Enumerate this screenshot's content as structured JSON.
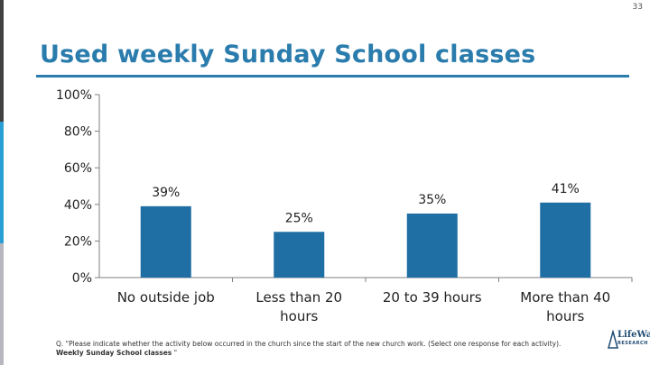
{
  "page_number": "33",
  "title": "Used weekly Sunday School classes",
  "footnote": {
    "prefix": "Q. \"Please indicate whether the activity below occurred in the church since the start of the new church work. (Select one response for each activity).",
    "bold": "Weekly Sunday School classes",
    "suffix": " \""
  },
  "logo": {
    "main": "LifeWay",
    "sub": "RESEARCH"
  },
  "colors": {
    "accent": "#2a7cad",
    "bar": "#1f6ea4",
    "axis": "#7f7f7f"
  },
  "chart_data": {
    "type": "bar",
    "title": "Used weekly Sunday School classes",
    "categories": [
      "No outside job",
      "Less than 20 hours",
      "20 to 39 hours",
      "More than 40 hours"
    ],
    "category_lines": [
      [
        "No outside job"
      ],
      [
        "Less than 20",
        "hours"
      ],
      [
        "20 to 39 hours"
      ],
      [
        "More than 40",
        "hours"
      ]
    ],
    "values": [
      39,
      25,
      35,
      41
    ],
    "data_labels": [
      "39%",
      "25%",
      "35%",
      "41%"
    ],
    "yticks": [
      "0%",
      "20%",
      "40%",
      "60%",
      "80%",
      "100%"
    ],
    "ylim": [
      0,
      100
    ],
    "grid": false,
    "legend": "none",
    "xlabel": "",
    "ylabel": ""
  }
}
